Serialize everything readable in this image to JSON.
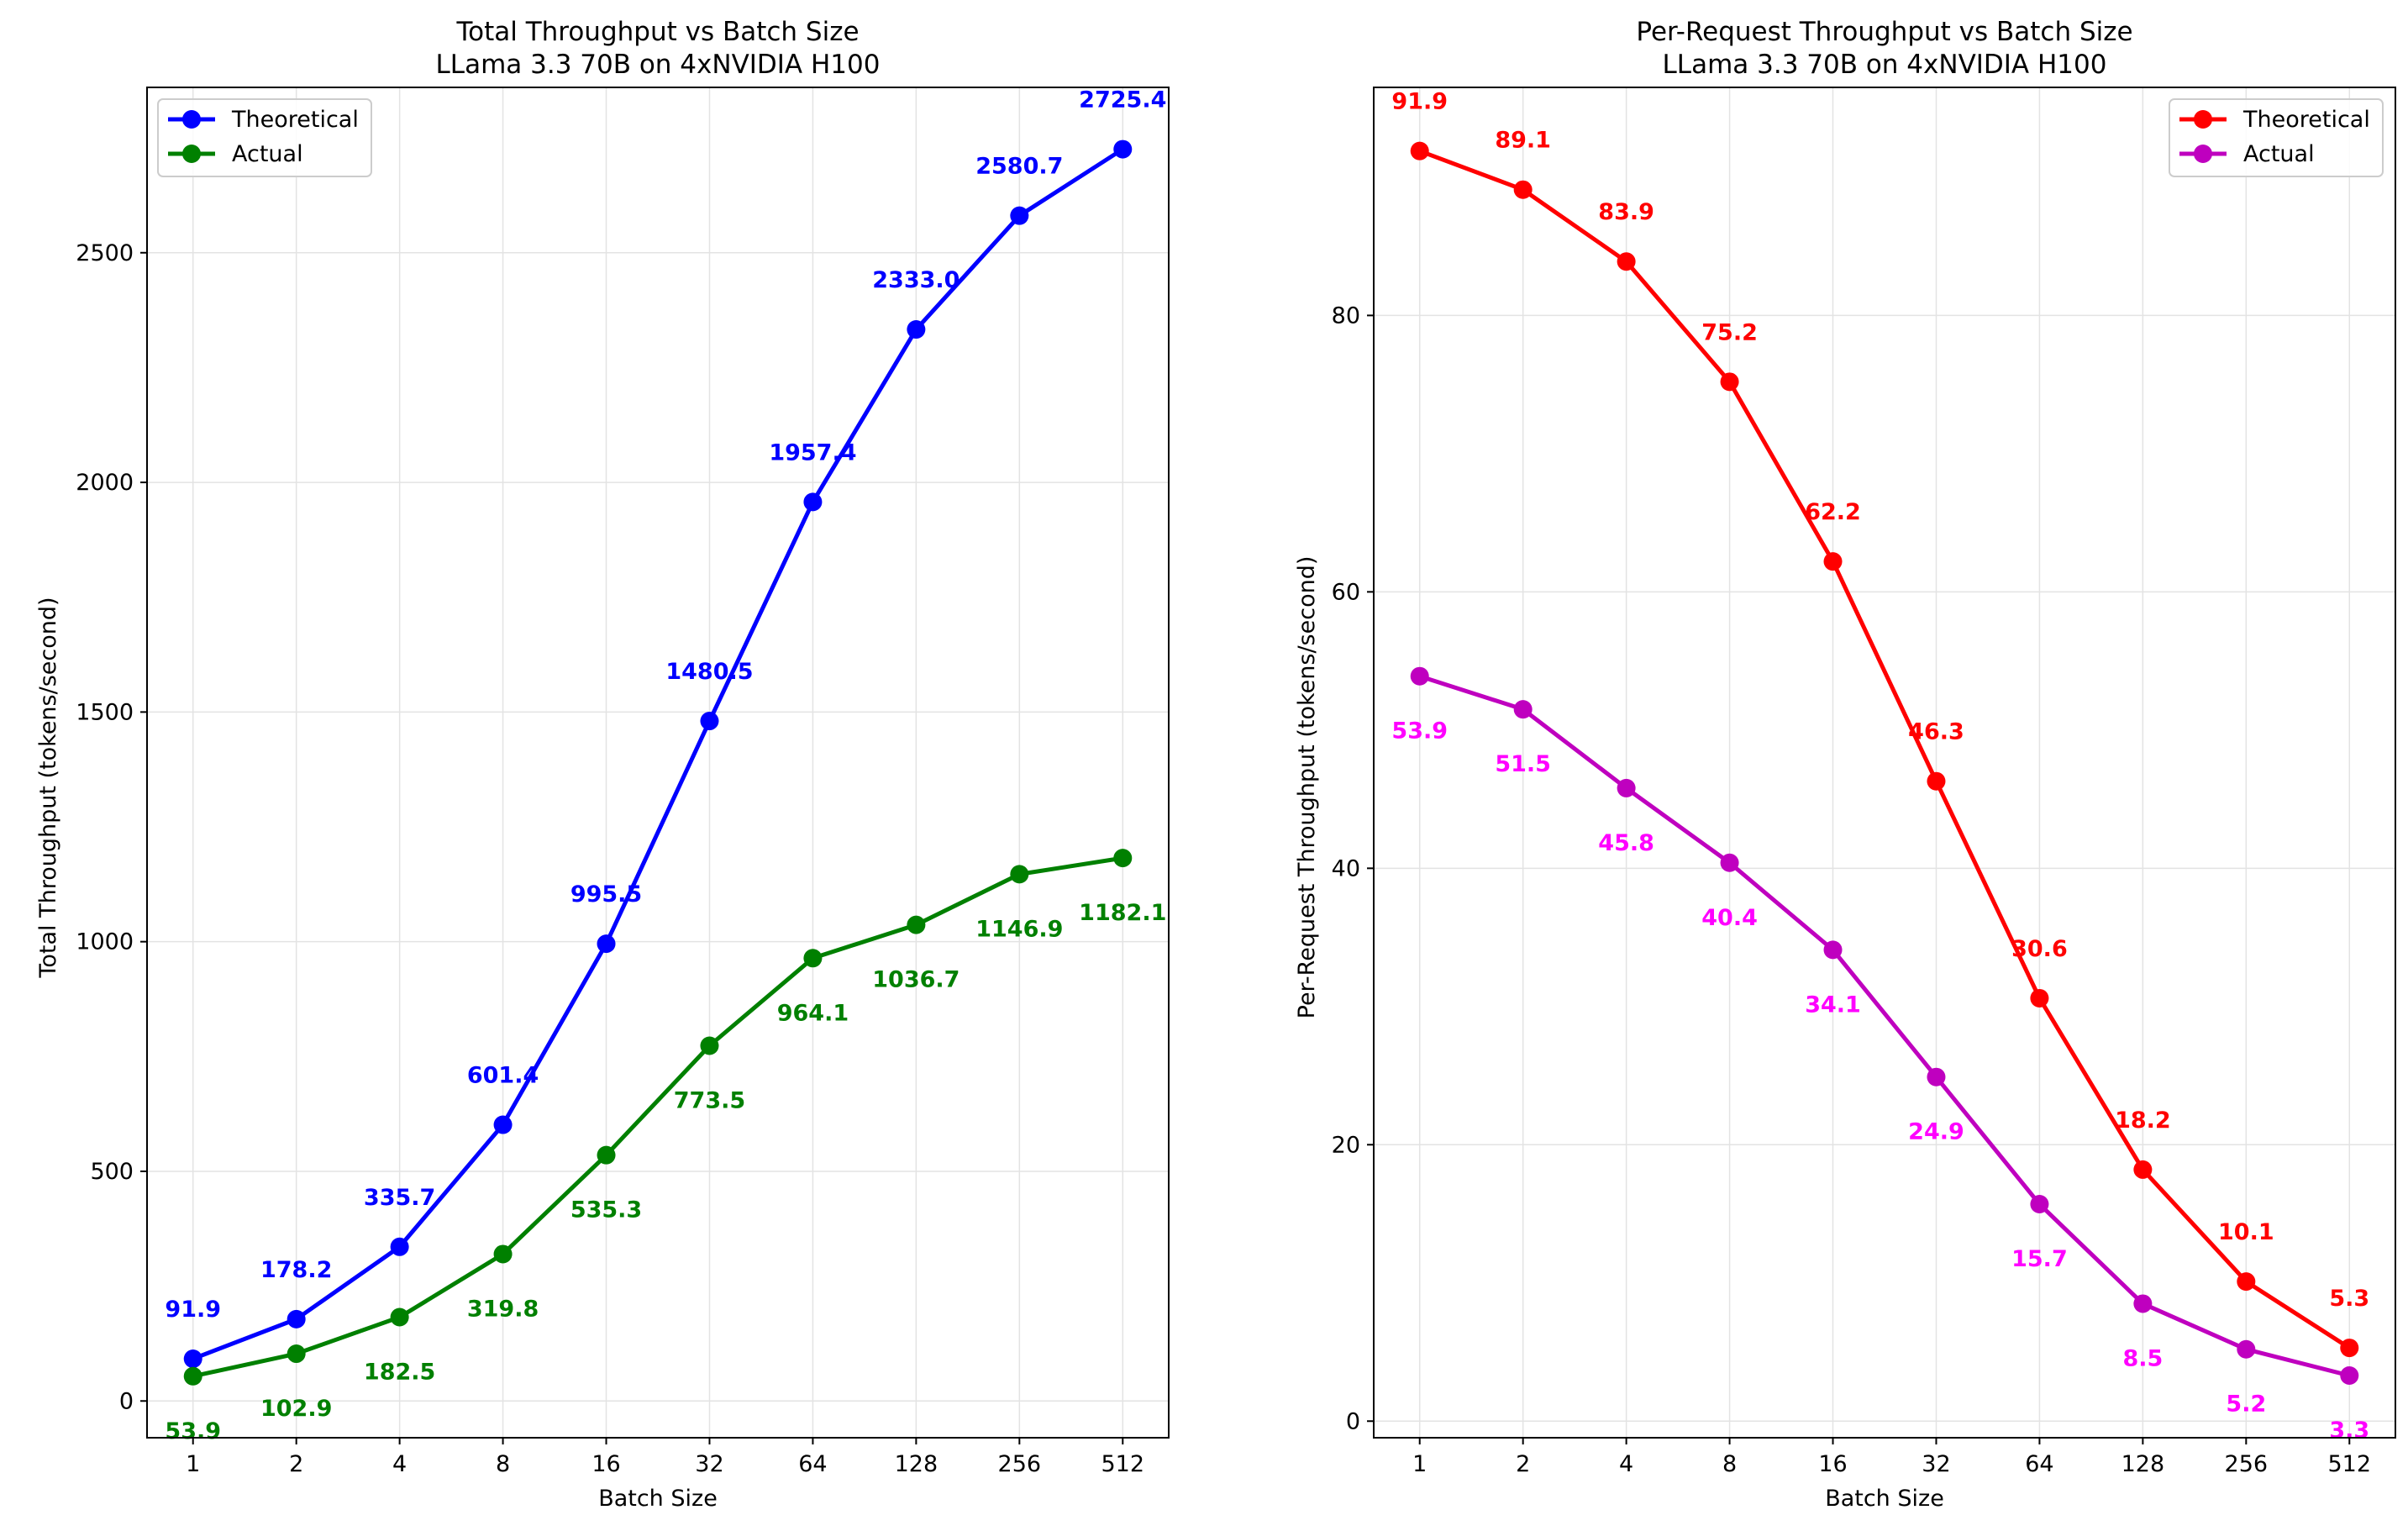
{
  "chart_data": [
    {
      "type": "line",
      "title": "Total Throughput vs Batch Size",
      "subtitle": "LLama 3.3 70B on 4xNVIDIA H100",
      "xlabel": "Batch Size",
      "ylabel": "Total Throughput (tokens/second)",
      "categories": [
        "1",
        "2",
        "4",
        "8",
        "16",
        "32",
        "64",
        "128",
        "256",
        "512"
      ],
      "ylim": [
        -80,
        2860
      ],
      "yticks": [
        0,
        500,
        1000,
        1500,
        2000,
        2500
      ],
      "grid": true,
      "legend_position": "top-left",
      "series": [
        {
          "name": "Theoretical",
          "color": "#0000ff",
          "label_color": "#0000ff",
          "label_position": "above",
          "values": [
            91.9,
            178.2,
            335.7,
            601.4,
            995.5,
            1480.5,
            1957.4,
            2333.0,
            2580.7,
            2725.4
          ],
          "labels": [
            "91.9",
            "178.2",
            "335.7",
            "601.4",
            "995.5",
            "1480.5",
            "1957.4",
            "2333.0",
            "2580.7",
            "2725.4"
          ]
        },
        {
          "name": "Actual",
          "color": "#008000",
          "label_color": "#008000",
          "label_position": "below",
          "values": [
            53.9,
            102.9,
            182.5,
            319.8,
            535.3,
            773.5,
            964.1,
            1036.7,
            1146.9,
            1182.1
          ],
          "labels": [
            "53.9",
            "102.9",
            "182.5",
            "319.8",
            "535.3",
            "773.5",
            "964.1",
            "1036.7",
            "1146.9",
            "1182.1"
          ]
        }
      ]
    },
    {
      "type": "line",
      "title": "Per-Request Throughput vs Batch Size",
      "subtitle": "LLama 3.3 70B on 4xNVIDIA H100",
      "xlabel": "Batch Size",
      "ylabel": "Per-Request Throughput (tokens/second)",
      "categories": [
        "1",
        "2",
        "4",
        "8",
        "16",
        "32",
        "64",
        "128",
        "256",
        "512"
      ],
      "ylim": [
        -1.2,
        96.5
      ],
      "yticks": [
        0,
        20,
        40,
        60,
        80
      ],
      "grid": true,
      "legend_position": "top-right",
      "series": [
        {
          "name": "Theoretical",
          "color": "#ff0000",
          "label_color": "#ff0000",
          "label_position": "above",
          "values": [
            91.9,
            89.1,
            83.9,
            75.2,
            62.2,
            46.3,
            30.6,
            18.2,
            10.1,
            5.3
          ],
          "labels": [
            "91.9",
            "89.1",
            "83.9",
            "75.2",
            "62.2",
            "46.3",
            "30.6",
            "18.2",
            "10.1",
            "5.3"
          ]
        },
        {
          "name": "Actual",
          "color": "#bf00bf",
          "label_color": "#ff00ff",
          "label_position": "below",
          "values": [
            53.9,
            51.5,
            45.8,
            40.4,
            34.1,
            24.9,
            15.7,
            8.5,
            5.2,
            3.3
          ],
          "labels": [
            "53.9",
            "51.5",
            "45.8",
            "40.4",
            "34.1",
            "24.9",
            "15.7",
            "8.5",
            "5.2",
            "3.3"
          ]
        }
      ]
    }
  ]
}
